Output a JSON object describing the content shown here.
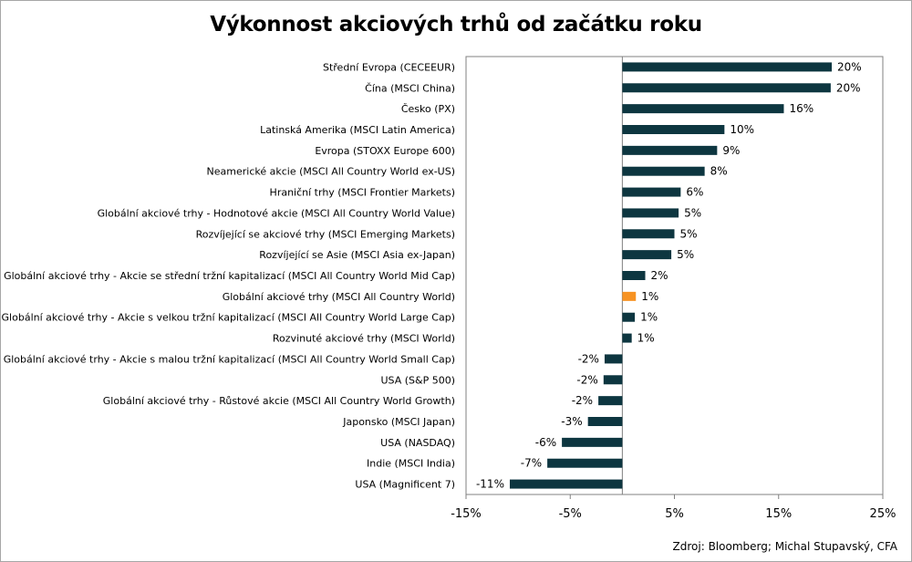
{
  "chart_data": {
    "type": "bar",
    "orientation": "horizontal",
    "title": "Výkonnost akciových trhů od začátku roku",
    "source": "Zdroj: Bloomberg; Michal Stupavský, CFA",
    "xlim": [
      -15,
      25
    ],
    "x_ticks": [
      -15,
      -5,
      5,
      15,
      25
    ],
    "x_tick_labels": [
      "-15%",
      "-5%",
      "5%",
      "15%",
      "25%"
    ],
    "grid": false,
    "legend": "none",
    "colors": {
      "bar": "#0d3640",
      "highlight": "#f79323",
      "axis": "#808080"
    },
    "highlight_category": "Globální akciové trhy (MSCI All Country World)",
    "categories": [
      "Střední Evropa (CECEEUR)",
      "Čína (MSCI China)",
      "Česko (PX)",
      "Latinská Amerika (MSCI Latin America)",
      "Evropa (STOXX Europe 600)",
      "Neamerické akcie (MSCI All Country World ex-US)",
      "Hraniční trhy (MSCI Frontier Markets)",
      "Globální akciové trhy - Hodnotové akcie (MSCI All Country World Value)",
      "Rozvíjející se akciové trhy (MSCI Emerging Markets)",
      "Rozvíjející se Asie (MSCI Asia ex-Japan)",
      "Globální akciové trhy - Akcie se střední tržní kapitalizací (MSCI All Country World Mid Cap)",
      "Globální akciové trhy (MSCI All Country World)",
      "Globální akciové trhy - Akcie s velkou tržní kapitalizací (MSCI All Country World Large Cap)",
      "Rozvinuté akciové trhy (MSCI World)",
      "Globální akciové trhy - Akcie s malou tržní kapitalizací (MSCI All Country World Small Cap)",
      "USA (S&P 500)",
      "Globální akciové trhy - Růstové akcie (MSCI All Country World Growth)",
      "Japonsko (MSCI Japan)",
      "USA (NASDAQ)",
      "Indie (MSCI India)",
      "USA (Magnificent 7)"
    ],
    "values": [
      20.1,
      20.0,
      15.5,
      9.8,
      9.1,
      7.9,
      5.6,
      5.4,
      5.0,
      4.7,
      2.2,
      1.3,
      1.2,
      0.9,
      -1.7,
      -1.8,
      -2.3,
      -3.3,
      -5.8,
      -7.2,
      -10.8
    ],
    "value_labels": [
      "20%",
      "20%",
      "16%",
      "10%",
      "9%",
      "8%",
      "6%",
      "5%",
      "5%",
      "5%",
      "2%",
      "1%",
      "1%",
      "1%",
      "-2%",
      "-2%",
      "-2%",
      "-3%",
      "-6%",
      "-7%",
      "-11%"
    ]
  }
}
